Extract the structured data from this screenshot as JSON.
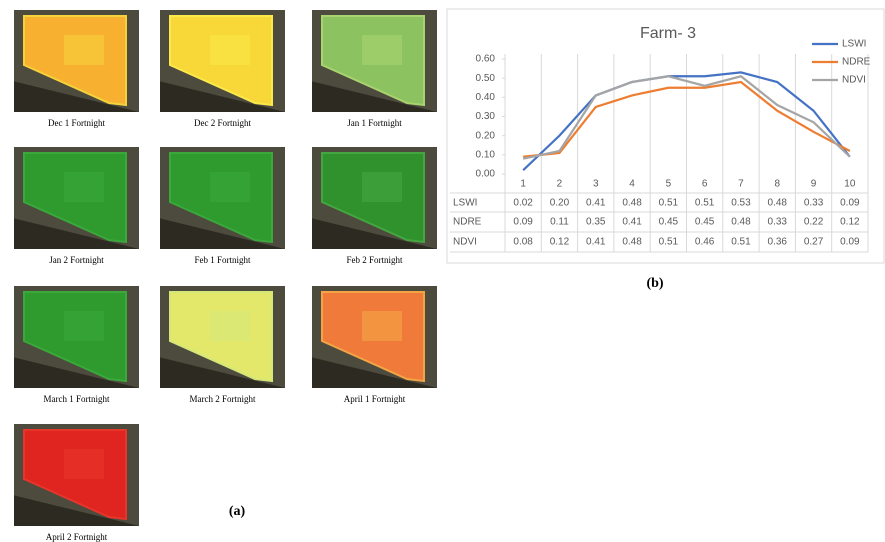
{
  "panel_a": {
    "label": "(a)",
    "captions": [
      "Dec 1 Fortnight",
      "Dec 2 Fortnight",
      "Jan 1 Fortnight",
      "Jan 2 Fortnight",
      "Feb 1 Fortnight",
      "Feb 2 Fortnight",
      "March 1 Fortnight",
      "March 2 Fortnight",
      "April 1 Fortnight",
      "April 2 Fortnight"
    ]
  },
  "panel_b_label": "(b)",
  "chart_data": {
    "type": "line",
    "title": "Farm- 3",
    "categories": [
      "1",
      "2",
      "3",
      "4",
      "5",
      "6",
      "7",
      "8",
      "9",
      "10"
    ],
    "series": [
      {
        "name": "LSWI",
        "color": "#4472c4",
        "values": [
          0.02,
          0.2,
          0.41,
          0.48,
          0.51,
          0.51,
          0.53,
          0.48,
          0.33,
          0.09
        ],
        "value_labels": [
          "0.02",
          "0.20",
          "0.41",
          "0.48",
          "0.51",
          "0.51",
          "0.53",
          "0.48",
          "0.33",
          "0.09"
        ]
      },
      {
        "name": "NDRE",
        "color": "#ed7d31",
        "values": [
          0.09,
          0.11,
          0.35,
          0.41,
          0.45,
          0.45,
          0.48,
          0.33,
          0.22,
          0.12
        ],
        "value_labels": [
          "0.09",
          "0.11",
          "0.35",
          "0.41",
          "0.45",
          "0.45",
          "0.48",
          "0.33",
          "0.22",
          "0.12"
        ]
      },
      {
        "name": "NDVI",
        "color": "#a5a5a5",
        "values": [
          0.08,
          0.12,
          0.41,
          0.48,
          0.51,
          0.46,
          0.51,
          0.36,
          0.27,
          0.09
        ],
        "value_labels": [
          "0.08",
          "0.12",
          "0.41",
          "0.48",
          "0.51",
          "0.46",
          "0.51",
          "0.36",
          "0.27",
          "0.09"
        ]
      }
    ],
    "ylim": [
      0,
      0.6
    ],
    "yticks": [
      {
        "value": 0,
        "label": "0.00"
      },
      {
        "value": 0.1,
        "label": "0.10"
      },
      {
        "value": 0.2,
        "label": "0.20"
      },
      {
        "value": 0.3,
        "label": "0.30"
      },
      {
        "value": 0.4,
        "label": "0.40"
      },
      {
        "value": 0.5,
        "label": "0.50"
      },
      {
        "value": 0.6,
        "label": "0.60"
      }
    ],
    "legend": "top-right"
  }
}
